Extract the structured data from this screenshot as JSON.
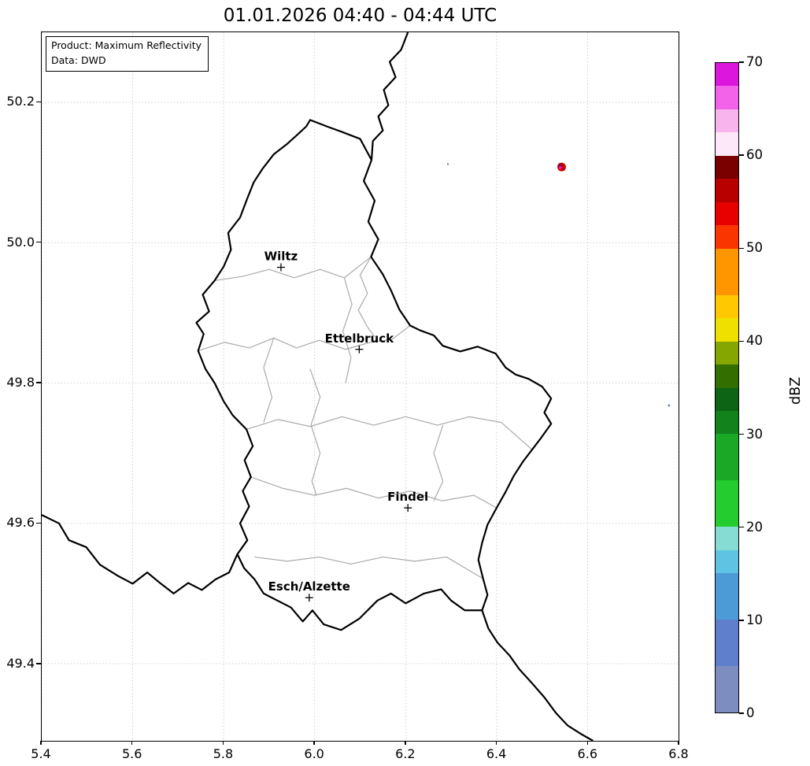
{
  "title": "01.01.2026 04:40 - 04:44 UTC",
  "info_box": {
    "line1": "Product: Maximum Reflectivity",
    "line2": "Data: DWD"
  },
  "chart_data": {
    "type": "heatmap",
    "subtype": "weather-radar-reflectivity-map",
    "title": "01.01.2026 04:40 - 04:44 UTC",
    "xlabel": "",
    "ylabel": "",
    "xlim": [
      5.4,
      6.8
    ],
    "ylim": [
      49.29,
      50.3
    ],
    "xticks": [
      5.4,
      5.6,
      5.8,
      6.0,
      6.2,
      6.4,
      6.6,
      6.8
    ],
    "yticks": [
      49.4,
      49.6,
      49.8,
      50.0,
      50.2
    ],
    "grid": "dotted",
    "colorbar": {
      "label": "dBZ",
      "min": 0,
      "max": 70,
      "ticks": [
        0,
        10,
        20,
        30,
        40,
        50,
        60,
        70
      ],
      "segments": [
        {
          "from": 0,
          "to": 5,
          "color": "#7e8dc0"
        },
        {
          "from": 5,
          "to": 10,
          "color": "#5f7ecb"
        },
        {
          "from": 10,
          "to": 15,
          "color": "#4d9bd6"
        },
        {
          "from": 15,
          "to": 17.5,
          "color": "#5fc3e3"
        },
        {
          "from": 17.5,
          "to": 20,
          "color": "#86dcd2"
        },
        {
          "from": 20,
          "to": 25,
          "color": "#24cc30"
        },
        {
          "from": 25,
          "to": 30,
          "color": "#1aa826"
        },
        {
          "from": 30,
          "to": 32.5,
          "color": "#12821c"
        },
        {
          "from": 32.5,
          "to": 35,
          "color": "#0c6414"
        },
        {
          "from": 35,
          "to": 37.5,
          "color": "#336e00"
        },
        {
          "from": 37.5,
          "to": 40,
          "color": "#85a500"
        },
        {
          "from": 40,
          "to": 42.5,
          "color": "#efe000"
        },
        {
          "from": 42.5,
          "to": 45,
          "color": "#ffc800"
        },
        {
          "from": 45,
          "to": 50,
          "color": "#ff9600"
        },
        {
          "from": 50,
          "to": 52.5,
          "color": "#fb3500"
        },
        {
          "from": 52.5,
          "to": 55,
          "color": "#e80000"
        },
        {
          "from": 55,
          "to": 57.5,
          "color": "#b80000"
        },
        {
          "from": 57.5,
          "to": 60,
          "color": "#7a0000"
        },
        {
          "from": 60,
          "to": 62.5,
          "color": "#fce8f8"
        },
        {
          "from": 62.5,
          "to": 65,
          "color": "#f8b4ec"
        },
        {
          "from": 65,
          "to": 67.5,
          "color": "#f263ea"
        },
        {
          "from": 67.5,
          "to": 70,
          "color": "#dc16dc"
        }
      ]
    },
    "cities": [
      {
        "name": "Wiltz",
        "lon": 5.926,
        "lat": 49.965
      },
      {
        "name": "Ettelbruck",
        "lon": 6.098,
        "lat": 49.848
      },
      {
        "name": "Findel",
        "lon": 6.205,
        "lat": 49.622
      },
      {
        "name": "Esch/Alzette",
        "lon": 5.988,
        "lat": 49.494
      }
    ],
    "echoes": [
      {
        "lon": 6.543,
        "lat": 50.108,
        "r": 5.5,
        "color": "#e00000"
      },
      {
        "lon": 6.54,
        "lat": 50.11,
        "r": 3.2,
        "color": "#8a0a28"
      },
      {
        "lon": 6.547,
        "lat": 50.105,
        "r": 2.0,
        "color": "#b40000"
      },
      {
        "lon": 6.54,
        "lat": 50.107,
        "r": 1.8,
        "color": "#e619d9"
      },
      {
        "lon": 6.293,
        "lat": 50.112,
        "r": 1.0,
        "color": "#3c4878"
      },
      {
        "lon": 6.779,
        "lat": 49.768,
        "r": 1.4,
        "color": "#5a78d0"
      }
    ]
  },
  "map": {
    "stroke": {
      "country": "#000000",
      "district": "#aaaaaa"
    },
    "paths": {
      "luxembourg": [
        [
          5.99,
          50.175
        ],
        [
          6.03,
          50.165
        ],
        [
          6.06,
          50.158
        ],
        [
          6.1,
          50.148
        ],
        [
          6.125,
          50.118
        ],
        [
          6.108,
          50.088
        ],
        [
          6.132,
          50.06
        ],
        [
          6.118,
          50.03
        ],
        [
          6.14,
          50.005
        ],
        [
          6.124,
          49.98
        ],
        [
          6.15,
          49.955
        ],
        [
          6.168,
          49.932
        ],
        [
          6.186,
          49.905
        ],
        [
          6.21,
          49.882
        ],
        [
          6.232,
          49.875
        ],
        [
          6.262,
          49.868
        ],
        [
          6.282,
          49.853
        ],
        [
          6.32,
          49.845
        ],
        [
          6.358,
          49.852
        ],
        [
          6.398,
          49.842
        ],
        [
          6.42,
          49.822
        ],
        [
          6.442,
          49.812
        ],
        [
          6.47,
          49.806
        ],
        [
          6.5,
          49.795
        ],
        [
          6.52,
          49.778
        ],
        [
          6.505,
          49.758
        ],
        [
          6.52,
          49.742
        ],
        [
          6.498,
          49.722
        ],
        [
          6.478,
          49.705
        ],
        [
          6.458,
          49.688
        ],
        [
          6.438,
          49.668
        ],
        [
          6.42,
          49.645
        ],
        [
          6.4,
          49.622
        ],
        [
          6.38,
          49.598
        ],
        [
          6.368,
          49.572
        ],
        [
          6.36,
          49.548
        ],
        [
          6.37,
          49.522
        ],
        [
          6.38,
          49.498
        ],
        [
          6.368,
          49.476
        ],
        [
          6.33,
          49.476
        ],
        [
          6.3,
          49.49
        ],
        [
          6.278,
          49.506
        ],
        [
          6.24,
          49.5
        ],
        [
          6.2,
          49.486
        ],
        [
          6.168,
          49.5
        ],
        [
          6.138,
          49.49
        ],
        [
          6.098,
          49.464
        ],
        [
          6.058,
          49.448
        ],
        [
          6.02,
          49.456
        ],
        [
          5.995,
          49.476
        ],
        [
          5.974,
          49.46
        ],
        [
          5.948,
          49.48
        ],
        [
          5.918,
          49.49
        ],
        [
          5.888,
          49.5
        ],
        [
          5.868,
          49.52
        ],
        [
          5.845,
          49.536
        ],
        [
          5.83,
          49.556
        ],
        [
          5.852,
          49.576
        ],
        [
          5.836,
          49.6
        ],
        [
          5.856,
          49.624
        ],
        [
          5.842,
          49.646
        ],
        [
          5.86,
          49.666
        ],
        [
          5.846,
          49.69
        ],
        [
          5.864,
          49.71
        ],
        [
          5.85,
          49.734
        ],
        [
          5.82,
          49.754
        ],
        [
          5.8,
          49.774
        ],
        [
          5.78,
          49.8
        ],
        [
          5.76,
          49.82
        ],
        [
          5.744,
          49.846
        ],
        [
          5.756,
          49.87
        ],
        [
          5.74,
          49.886
        ],
        [
          5.768,
          49.902
        ],
        [
          5.754,
          49.926
        ],
        [
          5.78,
          49.946
        ],
        [
          5.8,
          49.966
        ],
        [
          5.816,
          49.99
        ],
        [
          5.81,
          50.014
        ],
        [
          5.836,
          50.036
        ],
        [
          5.85,
          50.06
        ],
        [
          5.866,
          50.086
        ],
        [
          5.886,
          50.106
        ],
        [
          5.91,
          50.126
        ],
        [
          5.938,
          50.14
        ],
        [
          5.962,
          50.154
        ],
        [
          5.982,
          50.166
        ]
      ],
      "border_north": [
        [
          6.205,
          50.3
        ],
        [
          6.19,
          50.275
        ],
        [
          6.165,
          50.258
        ],
        [
          6.178,
          50.236
        ],
        [
          6.152,
          50.218
        ],
        [
          6.162,
          50.196
        ],
        [
          6.14,
          50.18
        ],
        [
          6.15,
          50.16
        ],
        [
          6.128,
          50.145
        ],
        [
          6.125,
          50.118
        ]
      ],
      "moselle_south": [
        [
          6.368,
          49.476
        ],
        [
          6.382,
          49.45
        ],
        [
          6.402,
          49.43
        ],
        [
          6.428,
          49.412
        ],
        [
          6.45,
          49.392
        ],
        [
          6.478,
          49.372
        ],
        [
          6.505,
          49.352
        ],
        [
          6.53,
          49.33
        ],
        [
          6.556,
          49.312
        ],
        [
          6.585,
          49.3
        ],
        [
          6.612,
          49.29
        ]
      ],
      "border_sw": [
        [
          5.4,
          49.612
        ],
        [
          5.438,
          49.6
        ],
        [
          5.46,
          49.576
        ],
        [
          5.498,
          49.566
        ],
        [
          5.528,
          49.541
        ],
        [
          5.568,
          49.525
        ],
        [
          5.6,
          49.514
        ],
        [
          5.632,
          49.53
        ],
        [
          5.662,
          49.514
        ],
        [
          5.69,
          49.5
        ],
        [
          5.722,
          49.515
        ],
        [
          5.752,
          49.505
        ],
        [
          5.782,
          49.52
        ],
        [
          5.812,
          49.53
        ],
        [
          5.83,
          49.556
        ]
      ],
      "districts": [
        [
          [
            5.78,
            49.946
          ],
          [
            5.842,
            49.952
          ],
          [
            5.9,
            49.962
          ],
          [
            5.955,
            49.95
          ],
          [
            6.012,
            49.962
          ],
          [
            6.065,
            49.95
          ],
          [
            6.124,
            49.98
          ]
        ],
        [
          [
            6.065,
            49.95
          ],
          [
            6.082,
            49.912
          ],
          [
            6.062,
            49.874
          ],
          [
            6.08,
            49.836
          ],
          [
            6.068,
            49.8
          ]
        ],
        [
          [
            5.744,
            49.846
          ],
          [
            5.802,
            49.858
          ],
          [
            5.856,
            49.85
          ],
          [
            5.91,
            49.864
          ],
          [
            5.96,
            49.85
          ],
          [
            6.01,
            49.861
          ],
          [
            6.068,
            49.848
          ],
          [
            6.122,
            49.858
          ],
          [
            6.17,
            49.862
          ],
          [
            6.21,
            49.882
          ]
        ],
        [
          [
            5.85,
            49.734
          ],
          [
            5.92,
            49.748
          ],
          [
            5.99,
            49.738
          ],
          [
            6.06,
            49.752
          ],
          [
            6.13,
            49.74
          ],
          [
            6.2,
            49.752
          ],
          [
            6.27,
            49.74
          ],
          [
            6.34,
            49.752
          ],
          [
            6.41,
            49.744
          ],
          [
            6.478,
            49.705
          ]
        ],
        [
          [
            5.86,
            49.666
          ],
          [
            5.93,
            49.65
          ],
          [
            6.0,
            49.64
          ],
          [
            6.07,
            49.65
          ],
          [
            6.14,
            49.636
          ],
          [
            6.21,
            49.646
          ],
          [
            6.28,
            49.632
          ],
          [
            6.35,
            49.64
          ],
          [
            6.4,
            49.622
          ]
        ],
        [
          [
            5.868,
            49.552
          ],
          [
            5.94,
            49.546
          ],
          [
            6.01,
            49.552
          ],
          [
            6.08,
            49.542
          ],
          [
            6.15,
            49.552
          ],
          [
            6.22,
            49.546
          ],
          [
            6.29,
            49.552
          ],
          [
            6.368,
            49.522
          ]
        ],
        [
          [
            5.99,
            49.82
          ],
          [
            6.012,
            49.78
          ],
          [
            5.992,
            49.74
          ],
          [
            6.012,
            49.7
          ],
          [
            5.994,
            49.66
          ],
          [
            6.004,
            49.64
          ]
        ],
        [
          [
            6.282,
            49.74
          ],
          [
            6.262,
            49.7
          ],
          [
            6.282,
            49.66
          ],
          [
            6.262,
            49.632
          ]
        ],
        [
          [
            5.91,
            49.864
          ],
          [
            5.888,
            49.822
          ],
          [
            5.906,
            49.78
          ],
          [
            5.888,
            49.744
          ]
        ],
        [
          [
            6.124,
            49.98
          ],
          [
            6.1,
            49.954
          ],
          [
            6.116,
            49.928
          ],
          [
            6.096,
            49.904
          ],
          [
            6.116,
            49.88
          ],
          [
            6.132,
            49.866
          ]
        ]
      ]
    }
  }
}
